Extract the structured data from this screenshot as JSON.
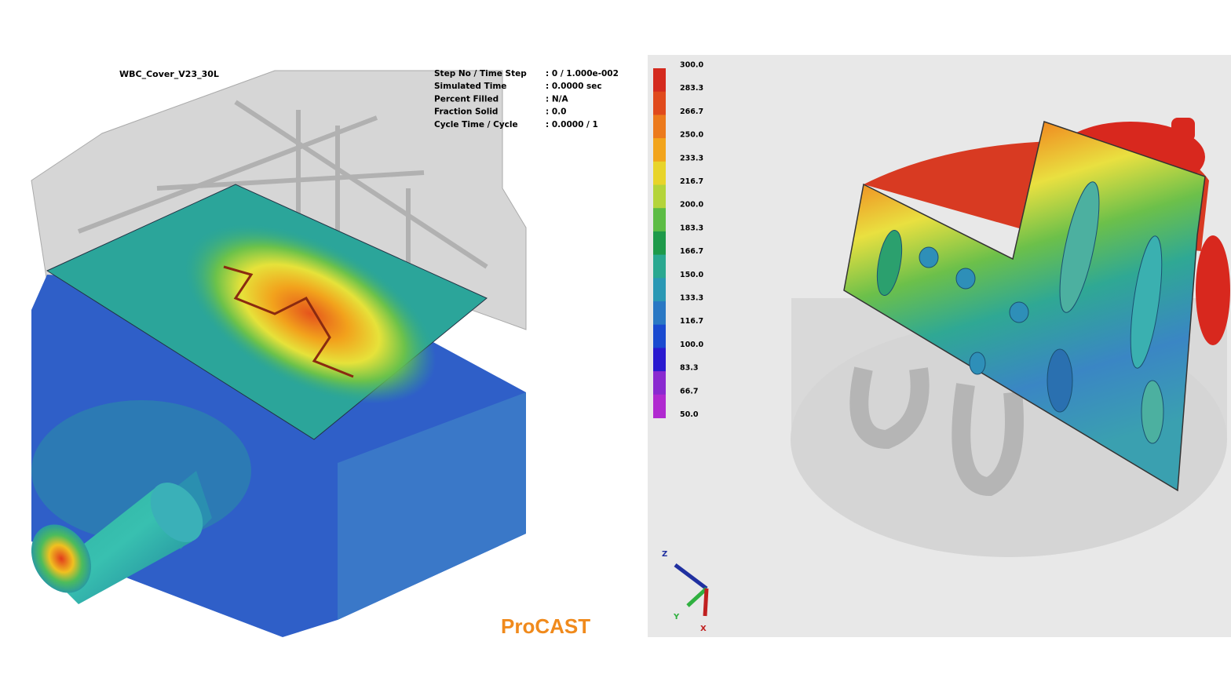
{
  "left_view": {
    "model_name": "WBC_Cover_V23_30L",
    "info": [
      {
        "label": "Step No / Time Step",
        "value": ": 0 / 1.000e-002"
      },
      {
        "label": "Simulated Time",
        "value": ": 0.0000 sec"
      },
      {
        "label": "Percent Filled",
        "value": ": N/A"
      },
      {
        "label": "Fraction Solid",
        "value": ": 0.0"
      },
      {
        "label": "Cycle Time / Cycle",
        "value": ": 0.0000 / 1"
      }
    ],
    "brand": "ProCAST"
  },
  "right_view": {
    "legend_labels": [
      "300.0",
      "283.3",
      "266.7",
      "250.0",
      "233.3",
      "216.7",
      "200.0",
      "183.3",
      "166.7",
      "150.0",
      "133.3",
      "116.7",
      "100.0",
      "83.3",
      "66.7",
      "50.0"
    ],
    "axes": {
      "z": "Z",
      "y": "Y",
      "x": "X"
    }
  }
}
